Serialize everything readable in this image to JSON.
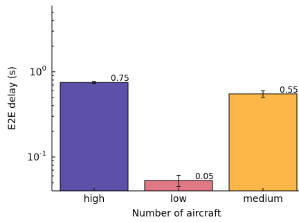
{
  "chart_data": {
    "type": "bar",
    "title": "",
    "xlabel": "Number of aircraft",
    "ylabel": "E2E delay (s)",
    "y_scale": "log",
    "ylim": [
      0.04,
      6.0
    ],
    "grid": false,
    "categories": [
      "high",
      "low",
      "medium"
    ],
    "values": [
      0.75,
      0.053,
      0.55
    ],
    "errors": [
      0.02,
      0.008,
      0.05
    ],
    "data_labels": [
      "0.75",
      "0.05",
      "0.55"
    ],
    "colors": [
      "#5b51a8",
      "#e07985",
      "#fdb748"
    ],
    "y_ticks": [
      {
        "value": 0.1,
        "base": "10",
        "exp": "-1"
      },
      {
        "value": 1.0,
        "base": "10",
        "exp": "0"
      }
    ]
  }
}
